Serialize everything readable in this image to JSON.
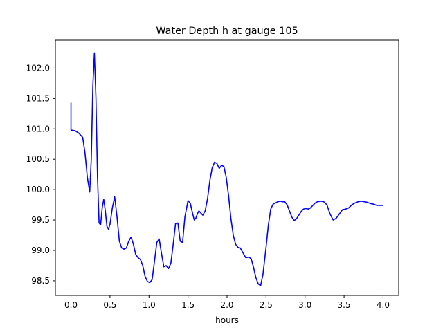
{
  "chart_data": {
    "type": "line",
    "title": "Water Depth h at gauge 105",
    "xlabel": "hours",
    "ylabel": "",
    "xlim": [
      -0.2,
      4.2
    ],
    "ylim": [
      98.26,
      102.46
    ],
    "grid": false,
    "x_ticks": [
      {
        "value": 0.0,
        "label": "0.0"
      },
      {
        "value": 0.5,
        "label": "0.5"
      },
      {
        "value": 1.0,
        "label": "1.0"
      },
      {
        "value": 1.5,
        "label": "1.5"
      },
      {
        "value": 2.0,
        "label": "2.0"
      },
      {
        "value": 2.5,
        "label": "2.5"
      },
      {
        "value": 3.0,
        "label": "3.0"
      },
      {
        "value": 3.5,
        "label": "3.5"
      },
      {
        "value": 4.0,
        "label": "4.0"
      }
    ],
    "y_ticks": [
      {
        "value": 98.5,
        "label": "98.5"
      },
      {
        "value": 99.0,
        "label": "99.0"
      },
      {
        "value": 99.5,
        "label": "99.5"
      },
      {
        "value": 100.0,
        "label": "100.0"
      },
      {
        "value": 100.5,
        "label": "100.5"
      },
      {
        "value": 101.0,
        "label": "101.0"
      },
      {
        "value": 101.5,
        "label": "101.5"
      },
      {
        "value": 102.0,
        "label": "102.0"
      }
    ],
    "series": [
      {
        "color": "#0000ff",
        "x": [
          0,
          0,
          0.05,
          0.1,
          0.15,
          0.18,
          0.21,
          0.24,
          0.26,
          0.28,
          0.3,
          0.32,
          0.34,
          0.36,
          0.38,
          0.4,
          0.42,
          0.44,
          0.46,
          0.48,
          0.5,
          0.53,
          0.56,
          0.59,
          0.62,
          0.65,
          0.68,
          0.71,
          0.74,
          0.77,
          0.8,
          0.83,
          0.86,
          0.89,
          0.92,
          0.95,
          0.98,
          1.01,
          1.04,
          1.07,
          1.1,
          1.13,
          1.16,
          1.19,
          1.22,
          1.25,
          1.28,
          1.31,
          1.34,
          1.37,
          1.4,
          1.43,
          1.46,
          1.5,
          1.53,
          1.56,
          1.58,
          1.6,
          1.62,
          1.64,
          1.66,
          1.69,
          1.72,
          1.75,
          1.78,
          1.81,
          1.84,
          1.87,
          1.9,
          1.93,
          1.96,
          1.99,
          2.02,
          2.05,
          2.08,
          2.11,
          2.14,
          2.17,
          2.2,
          2.24,
          2.28,
          2.31,
          2.34,
          2.37,
          2.4,
          2.43,
          2.46,
          2.5,
          2.53,
          2.56,
          2.59,
          2.62,
          2.65,
          2.68,
          2.71,
          2.74,
          2.77,
          2.8,
          2.83,
          2.86,
          2.89,
          2.92,
          2.95,
          2.98,
          3.01,
          3.04,
          3.07,
          3.1,
          3.13,
          3.16,
          3.2,
          3.24,
          3.28,
          3.32,
          3.36,
          3.4,
          3.44,
          3.48,
          3.52,
          3.56,
          3.6,
          3.64,
          3.68,
          3.72,
          3.76,
          3.8,
          3.84,
          3.88,
          3.92,
          3.96,
          4.0
        ],
        "y": [
          101.43,
          100.98,
          100.97,
          100.93,
          100.86,
          100.6,
          100.2,
          99.96,
          100.5,
          101.7,
          102.25,
          101.5,
          100.2,
          99.45,
          99.42,
          99.7,
          99.84,
          99.65,
          99.4,
          99.35,
          99.43,
          99.7,
          99.88,
          99.55,
          99.15,
          99.04,
          99.02,
          99.04,
          99.15,
          99.22,
          99.1,
          98.93,
          98.88,
          98.85,
          98.75,
          98.57,
          98.49,
          98.47,
          98.52,
          98.82,
          99.13,
          99.19,
          98.95,
          98.73,
          98.75,
          98.7,
          98.79,
          99.1,
          99.44,
          99.45,
          99.15,
          99.13,
          99.55,
          99.82,
          99.77,
          99.6,
          99.5,
          99.53,
          99.6,
          99.65,
          99.62,
          99.58,
          99.65,
          99.85,
          100.15,
          100.36,
          100.45,
          100.43,
          100.35,
          100.4,
          100.38,
          100.2,
          99.9,
          99.52,
          99.25,
          99.1,
          99.05,
          99.04,
          98.97,
          98.88,
          98.89,
          98.86,
          98.72,
          98.55,
          98.45,
          98.42,
          98.6,
          99.05,
          99.42,
          99.68,
          99.76,
          99.78,
          99.8,
          99.81,
          99.8,
          99.8,
          99.75,
          99.65,
          99.55,
          99.49,
          99.52,
          99.58,
          99.64,
          99.68,
          99.69,
          99.68,
          99.7,
          99.74,
          99.78,
          99.8,
          99.81,
          99.8,
          99.75,
          99.6,
          99.5,
          99.53,
          99.6,
          99.67,
          99.68,
          99.7,
          99.75,
          99.78,
          99.8,
          99.81,
          99.8,
          99.79,
          99.77,
          99.76,
          99.74,
          99.74,
          99.74
        ]
      }
    ]
  }
}
